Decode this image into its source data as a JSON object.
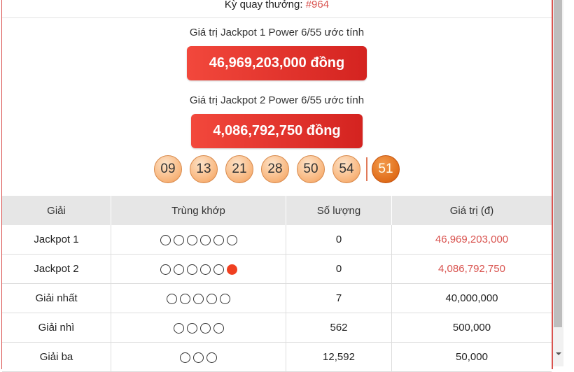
{
  "draw": {
    "label": "Kỳ quay thưởng: ",
    "number": "#964"
  },
  "jackpot1": {
    "label": "Giá trị Jackpot 1 Power 6/55 ước tính",
    "value": "46,969,203,000 đồng"
  },
  "jackpot2": {
    "label": "Giá trị Jackpot 2 Power 6/55 ước tính",
    "value": "4,086,792,750 đồng"
  },
  "balls": [
    "09",
    "13",
    "21",
    "28",
    "50",
    "54"
  ],
  "power_ball": "51",
  "table": {
    "headers": [
      "Giải",
      "Trùng khớp",
      "Số lượng",
      "Giá trị (đ)"
    ],
    "rows": [
      {
        "prize": "Jackpot 1",
        "match": 6,
        "power": false,
        "count": "0",
        "value": "46,969,203,000",
        "highlight": true
      },
      {
        "prize": "Jackpot 2",
        "match": 5,
        "power": true,
        "count": "0",
        "value": "4,086,792,750",
        "highlight": true
      },
      {
        "prize": "Giải nhất",
        "match": 5,
        "power": false,
        "count": "7",
        "value": "40,000,000",
        "highlight": false
      },
      {
        "prize": "Giải nhì",
        "match": 4,
        "power": false,
        "count": "562",
        "value": "500,000",
        "highlight": false
      },
      {
        "prize": "Giải ba",
        "match": 3,
        "power": false,
        "count": "12,592",
        "value": "50,000",
        "highlight": false
      }
    ]
  },
  "colors": {
    "accent": "#d9534f",
    "power_dot": "#f04020"
  }
}
